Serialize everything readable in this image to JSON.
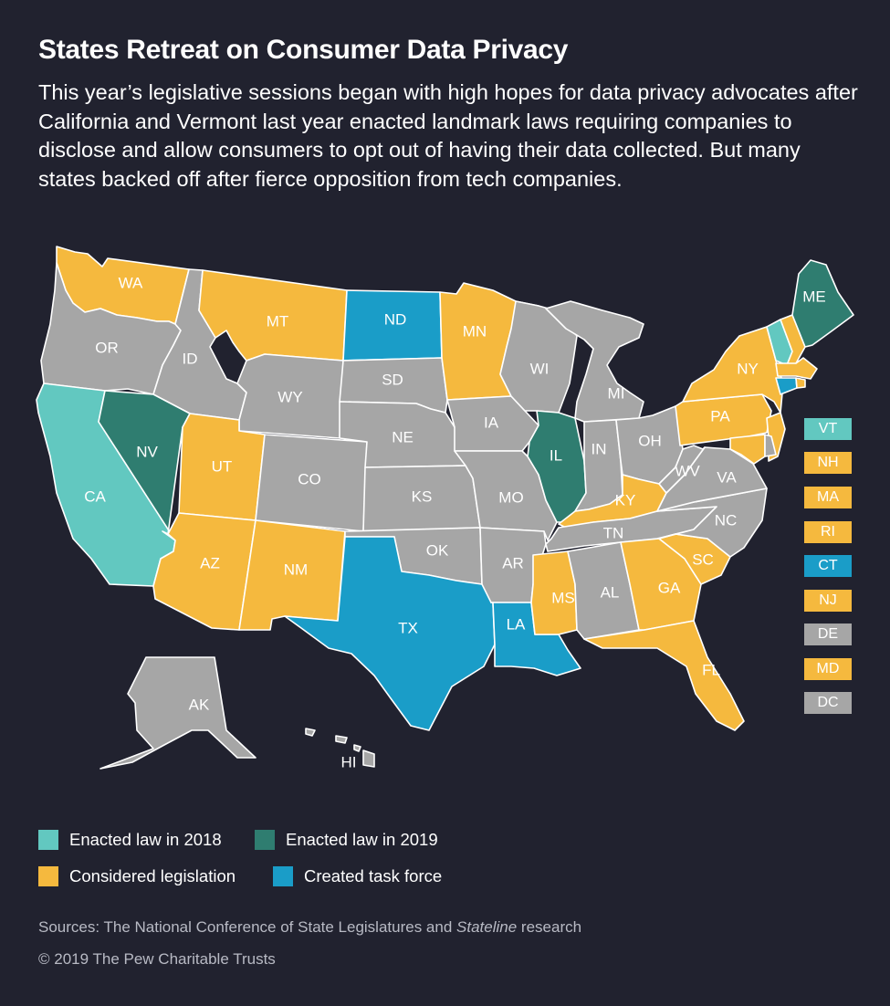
{
  "header": {
    "title": "States Retreat on Consumer Data Privacy",
    "subtitle": "This year’s legislative sessions began with high hopes for data privacy advocates after California and Vermont last year enacted landmark laws requiring companies to disclose and allow consumers to opt out of having their data collected. But many states backed off after fierce opposition from tech companies."
  },
  "colors": {
    "background": "#21222f",
    "enacted_2018": "#62c8c0",
    "enacted_2019": "#2f7d70",
    "considered": "#f5b93e",
    "task_force": "#1a9dc8",
    "none": "#a6a6a6"
  },
  "legend": [
    {
      "label": "Enacted law in 2018",
      "color": "#62c8c0"
    },
    {
      "label": "Enacted law in 2019",
      "color": "#2f7d70"
    },
    {
      "label": "Considered legislation",
      "color": "#f5b93e"
    },
    {
      "label": "Created task force",
      "color": "#1a9dc8"
    }
  ],
  "states": {
    "WA": "considered",
    "OR": "none",
    "CA": "enacted_2018",
    "ID": "none",
    "NV": "enacted_2019",
    "MT": "considered",
    "WY": "none",
    "UT": "considered",
    "AZ": "considered",
    "CO": "none",
    "NM": "considered",
    "ND": "task_force",
    "SD": "none",
    "NE": "none",
    "KS": "none",
    "OK": "none",
    "TX": "task_force",
    "MN": "considered",
    "IA": "none",
    "MO": "none",
    "AR": "none",
    "LA": "task_force",
    "WI": "none",
    "IL": "enacted_2019",
    "MI": "none",
    "IN": "none",
    "OH": "none",
    "KY": "considered",
    "TN": "none",
    "MS": "considered",
    "AL": "none",
    "GA": "considered",
    "FL": "considered",
    "SC": "considered",
    "NC": "none",
    "VA": "none",
    "WV": "none",
    "PA": "considered",
    "NY": "considered",
    "ME": "enacted_2019",
    "AK": "none",
    "HI": "none"
  },
  "small_states": [
    {
      "abbr": "VT",
      "status": "enacted_2018"
    },
    {
      "abbr": "NH",
      "status": "considered"
    },
    {
      "abbr": "MA",
      "status": "considered"
    },
    {
      "abbr": "RI",
      "status": "considered"
    },
    {
      "abbr": "CT",
      "status": "task_force"
    },
    {
      "abbr": "NJ",
      "status": "considered"
    },
    {
      "abbr": "DE",
      "status": "none"
    },
    {
      "abbr": "MD",
      "status": "considered"
    },
    {
      "abbr": "DC",
      "status": "none"
    }
  ],
  "footer": {
    "sources_prefix": "Sources: The National Conference of State Legislatures and ",
    "sources_italic": "Stateline",
    "sources_suffix": " research",
    "copyright": "© 2019 The Pew Charitable Trusts"
  }
}
